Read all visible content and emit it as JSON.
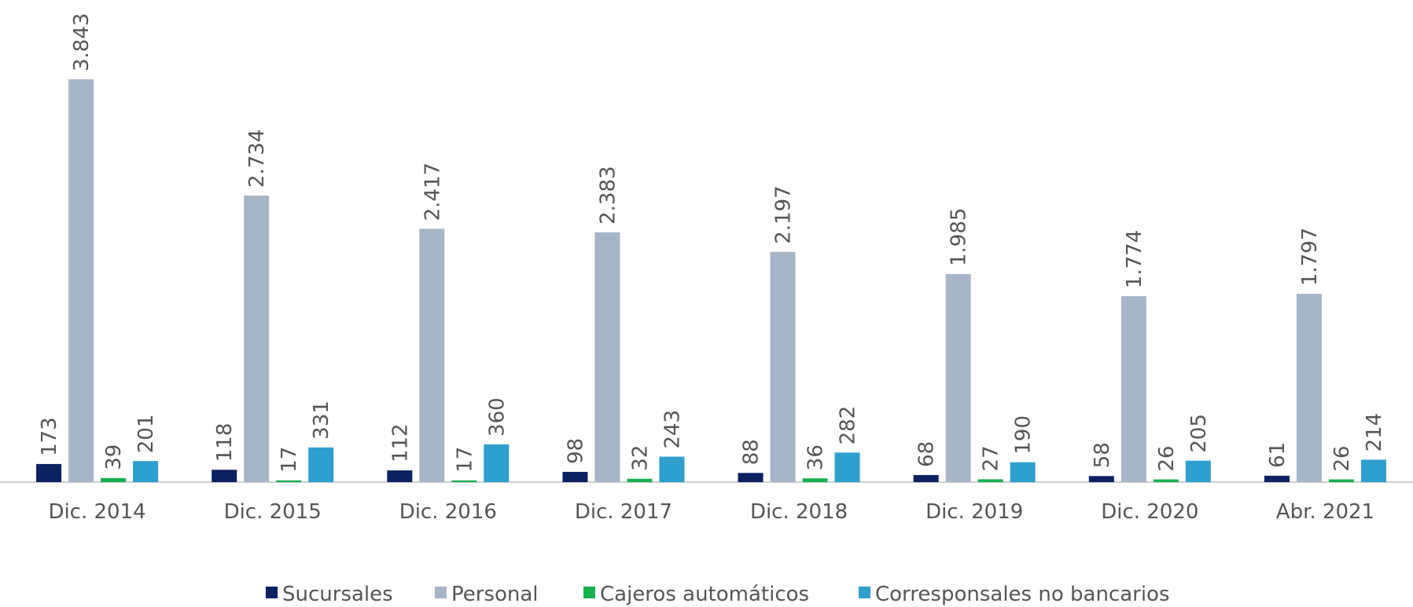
{
  "chart_data": {
    "type": "bar",
    "categories": [
      "Dic. 2014",
      "Dic. 2015",
      "Dic. 2016",
      "Dic. 2017",
      "Dic. 2018",
      "Dic. 2019",
      "Dic. 2020",
      "Abr. 2021"
    ],
    "series": [
      {
        "name": "Sucursales",
        "color": "#0b2160",
        "values": [
          173,
          118,
          112,
          98,
          88,
          68,
          58,
          61
        ]
      },
      {
        "name": "Personal",
        "color": "#a7b5c9",
        "values": [
          3843,
          2734,
          2417,
          2383,
          2197,
          1985,
          1774,
          1797
        ],
        "value_labels": [
          "3.843",
          "2.734",
          "2.417",
          "2.383",
          "2.197",
          "1.985",
          "1.774",
          "1.797"
        ]
      },
      {
        "name": "Cajeros automáticos",
        "color": "#17b04f",
        "values": [
          39,
          17,
          17,
          32,
          36,
          27,
          26,
          26
        ]
      },
      {
        "name": "Corresponsales no bancarios",
        "color": "#2f9fcd",
        "values": [
          201,
          331,
          360,
          243,
          282,
          190,
          205,
          214
        ]
      }
    ],
    "legend": "bottom"
  }
}
